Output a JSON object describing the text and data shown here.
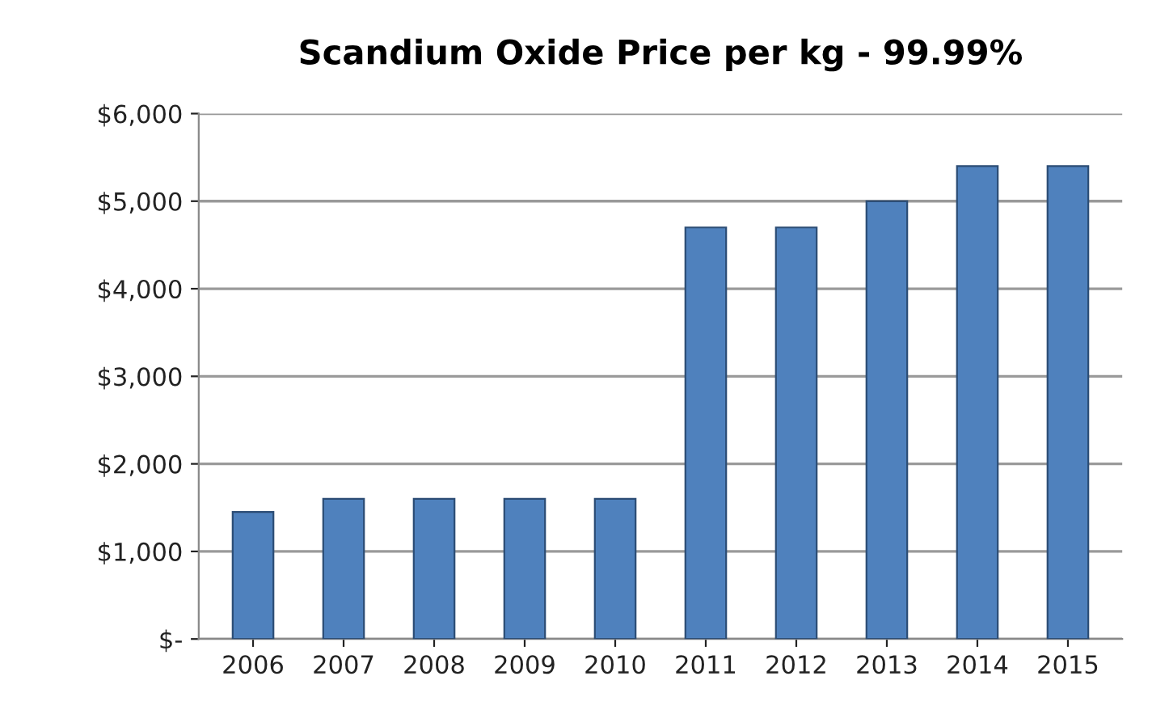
{
  "chart_data": {
    "type": "bar",
    "title": "Scandium Oxide Price per kg - 99.99%",
    "categories": [
      "2006",
      "2007",
      "2008",
      "2009",
      "2010",
      "2011",
      "2012",
      "2013",
      "2014",
      "2015"
    ],
    "values": [
      1450,
      1600,
      1600,
      1600,
      1600,
      4700,
      4700,
      5000,
      5400,
      5400
    ],
    "color": "#4f81bd",
    "ylim": [
      0,
      6000
    ],
    "yticks": [
      {
        "value": 0,
        "label": "$-"
      },
      {
        "value": 1000,
        "label": "$1,000"
      },
      {
        "value": 2000,
        "label": "$2,000"
      },
      {
        "value": 3000,
        "label": "$3,000"
      },
      {
        "value": 4000,
        "label": "$4,000"
      },
      {
        "value": 5000,
        "label": "$5,000"
      },
      {
        "value": 6000,
        "label": "$6,000"
      }
    ],
    "grid": "y"
  }
}
